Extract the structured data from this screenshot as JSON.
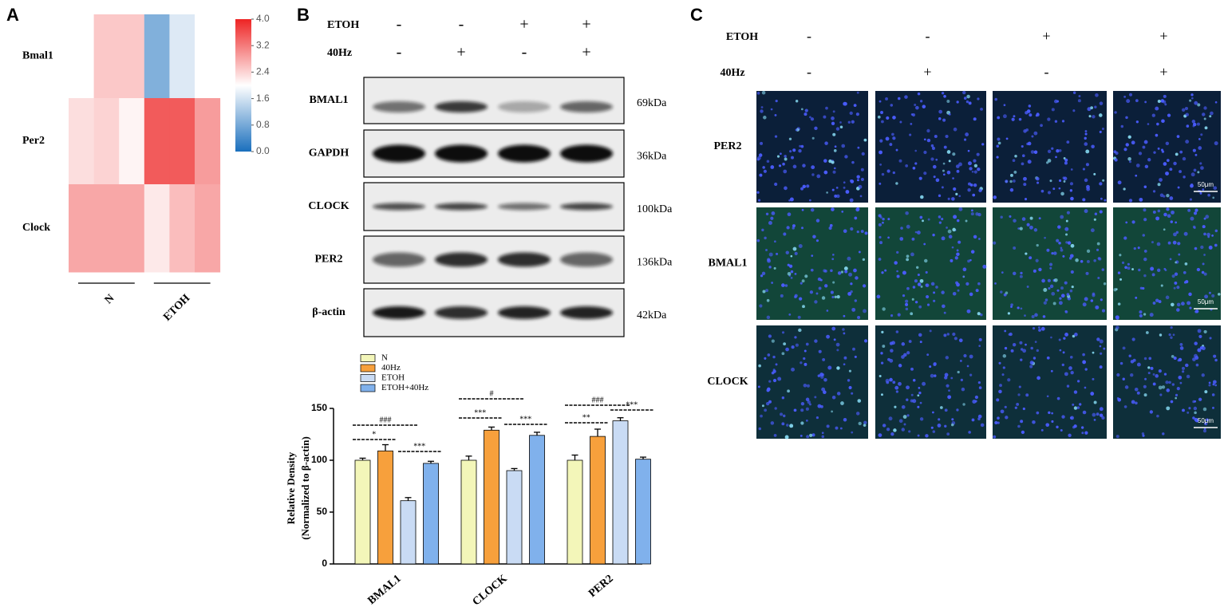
{
  "panels": [
    "A",
    "B",
    "C"
  ],
  "chart_data": [
    {
      "type": "heatmap",
      "rows": [
        "Bmal1",
        "Per2",
        "Clock"
      ],
      "column_groups": [
        "N",
        "ETOH"
      ],
      "values": [
        [
          2.0,
          2.5,
          2.5,
          0.9,
          1.7,
          2.0
        ],
        [
          2.3,
          2.4,
          2.1,
          3.5,
          3.5,
          2.9
        ],
        [
          2.8,
          2.8,
          2.8,
          2.2,
          2.6,
          2.8
        ]
      ],
      "colormap": [
        "#1a6fbd",
        "#ffffff",
        "#ee2424"
      ],
      "clim": [
        0,
        4
      ],
      "cticks": [
        {
          "value": 0,
          "label": "0.0"
        },
        {
          "value": 0.8,
          "label": "0.8"
        },
        {
          "value": 1.6,
          "label": "1.6"
        },
        {
          "value": 2.4,
          "label": "2.4"
        },
        {
          "value": 3.2,
          "label": "3.2"
        },
        {
          "value": 4,
          "label": "4.0"
        }
      ]
    },
    {
      "type": "bar",
      "categories": [
        "BMAL1",
        "CLOCK",
        "PER2"
      ],
      "series": [
        {
          "name": "N",
          "color": "#f3f6b9",
          "values": [
            100,
            100,
            100
          ],
          "errors": [
            2,
            4,
            5
          ]
        },
        {
          "name": "40Hz",
          "color": "#f7a03c",
          "values": [
            109,
            129,
            123
          ],
          "errors": [
            6,
            3,
            7
          ]
        },
        {
          "name": "ETOH",
          "color": "#c9dbf4",
          "values": [
            61,
            90,
            138
          ],
          "errors": [
            3,
            2,
            3
          ]
        },
        {
          "name": "ETOH+40Hz",
          "color": "#80b1ec",
          "values": [
            97,
            124,
            101
          ],
          "errors": [
            2,
            3,
            2
          ]
        }
      ],
      "ylim": [
        0,
        150
      ],
      "yticks": [
        0,
        50,
        100,
        150
      ],
      "ylabel": [
        "Relative Density",
        "(Normalized to β-actin)"
      ],
      "annotations": [
        "###",
        "*",
        "***",
        "#",
        "***",
        "***",
        "###",
        "**",
        "***"
      ],
      "legend": "top-left"
    }
  ],
  "blot": {
    "condition_labels": [
      "ETOH",
      "40Hz"
    ],
    "conditions": [
      [
        "-",
        "-",
        "+",
        "+"
      ],
      [
        "-",
        "+",
        "-",
        "+"
      ]
    ],
    "rows": [
      {
        "label": "BMAL1",
        "size": "69kDa"
      },
      {
        "label": "GAPDH",
        "size": "36kDa"
      },
      {
        "label": "CLOCK",
        "size": "100kDa"
      },
      {
        "label": "PER2",
        "size": "136kDa"
      },
      {
        "label": "β-actin",
        "size": "42kDa"
      }
    ]
  },
  "imaging": {
    "condition_labels": [
      "ETOH",
      "40Hz"
    ],
    "conditions": [
      [
        "-",
        "-",
        "+",
        "+"
      ],
      [
        "-",
        "+",
        "-",
        "+"
      ]
    ],
    "rows": [
      "PER2",
      "BMAL1",
      "CLOCK"
    ],
    "scale_bar": "50μm"
  }
}
